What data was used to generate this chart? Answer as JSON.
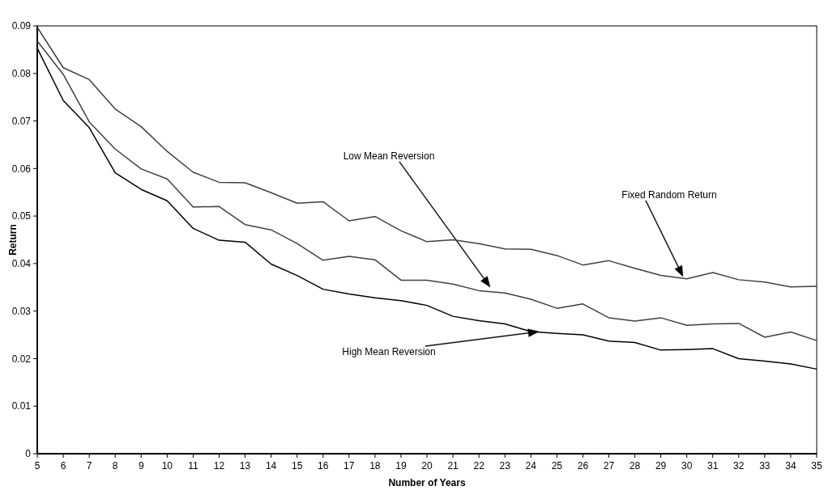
{
  "chart_data": {
    "type": "line",
    "xlabel": "Number of Years",
    "ylabel": "Return",
    "x": [
      5,
      6,
      7,
      8,
      9,
      10,
      11,
      12,
      13,
      14,
      15,
      16,
      17,
      18,
      19,
      20,
      21,
      22,
      23,
      24,
      25,
      26,
      27,
      28,
      29,
      30,
      31,
      32,
      33,
      34,
      35
    ],
    "xlim": [
      5,
      35
    ],
    "xticks": [
      5,
      6,
      7,
      8,
      9,
      10,
      11,
      12,
      13,
      14,
      15,
      16,
      17,
      18,
      19,
      20,
      21,
      22,
      23,
      24,
      25,
      26,
      27,
      28,
      29,
      30,
      31,
      32,
      33,
      34,
      35
    ],
    "ylim": [
      0,
      0.09
    ],
    "yticks": [
      0,
      0.01,
      0.02,
      0.03,
      0.04,
      0.05,
      0.06,
      0.07,
      0.08,
      0.09
    ],
    "grid": false,
    "marker": "none",
    "line_style": "solid",
    "series": [
      {
        "color": "#404040",
        "values": [
          0.0897,
          0.0812,
          0.0787,
          0.0725,
          0.0688,
          0.0636,
          0.0592,
          0.0571,
          0.057,
          0.0549,
          0.0527,
          0.053,
          0.049,
          0.0499,
          0.0469,
          0.0446,
          0.045,
          0.0442,
          0.0431,
          0.043,
          0.0417,
          0.0397,
          0.0406,
          0.039,
          0.0375,
          0.0368,
          0.0381,
          0.0366,
          0.0361,
          0.0351,
          0.0352
        ]
      },
      {
        "color": "#404040",
        "values": [
          0.0868,
          0.0798,
          0.0698,
          0.0641,
          0.0599,
          0.0578,
          0.0519,
          0.052,
          0.0482,
          0.0471,
          0.0442,
          0.0407,
          0.0415,
          0.0408,
          0.0365,
          0.0365,
          0.0357,
          0.0343,
          0.0338,
          0.0325,
          0.0306,
          0.0315,
          0.0286,
          0.0279,
          0.0286,
          0.027,
          0.0273,
          0.0274,
          0.0245,
          0.0256,
          0.0238
        ]
      },
      {
        "color": "#000000",
        "values": [
          0.0853,
          0.0743,
          0.0686,
          0.0591,
          0.0556,
          0.0532,
          0.0474,
          0.0449,
          0.0445,
          0.0399,
          0.0375,
          0.0346,
          0.0336,
          0.0328,
          0.0322,
          0.0312,
          0.0289,
          0.028,
          0.0273,
          0.0257,
          0.0253,
          0.025,
          0.0237,
          0.0234,
          0.0218,
          0.0219,
          0.0221,
          0.02,
          0.0195,
          0.0189,
          0.0178
        ]
      }
    ],
    "annotations": [
      "Low Mean Reversion",
      "High Mean Reversion",
      "Fixed Random Return"
    ]
  }
}
